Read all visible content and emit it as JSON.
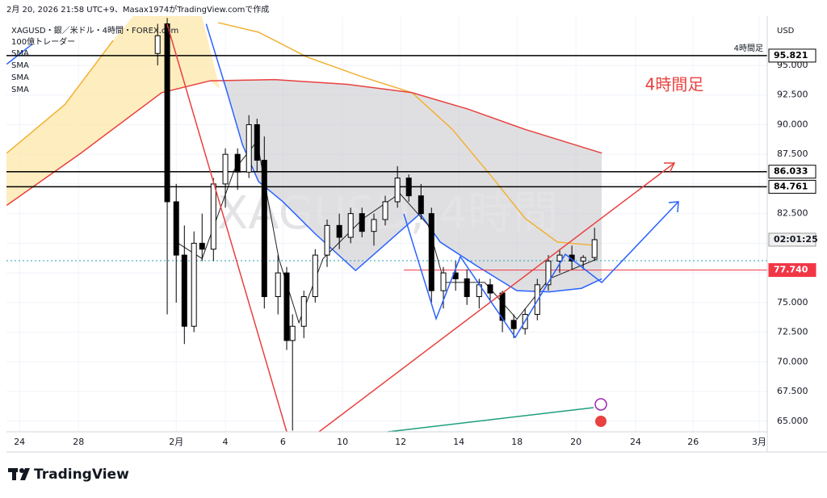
{
  "header": {
    "caption": "2月 20, 2026 21:58 UTC+9、Masax1974がTradingView.comで作成"
  },
  "footer": {
    "brand": "TradingView"
  },
  "chart_data": {
    "type": "candlestick",
    "title": "XAGUSD・銀／米ドル・4時間・FOREX.com",
    "subtitle": "100億トレーダー",
    "watermark": "XAGUSD, 4時間",
    "annotation": "4時間足",
    "currency": "USD",
    "countdown": "02:01:25",
    "grid": true,
    "colors": {
      "up": "#ffffff",
      "down": "#000000",
      "border": "#000000"
    },
    "x": [
      4.75,
      5.08,
      5.39,
      5.67,
      6.0,
      6.28,
      6.67,
      7.08,
      7.5,
      7.89,
      8.17,
      8.42,
      8.89,
      9.19,
      9.39,
      9.78,
      10.17,
      10.58,
      11.0,
      11.39,
      11.78,
      12.19,
      12.58,
      13.0,
      13.39,
      13.81,
      14.17,
      14.58,
      15.0,
      15.39,
      15.81,
      16.19,
      16.61,
      17.0,
      17.39,
      17.81,
      18.19,
      18.58,
      19.0,
      19.39,
      19.78
    ],
    "open": [
      96,
      98.5,
      83.5,
      79,
      73,
      80,
      79.5,
      85,
      87.5,
      86,
      90,
      87,
      75.5,
      77.5,
      71.8,
      73,
      75.5,
      79,
      81.5,
      80.5,
      82.5,
      81,
      82,
      83.5,
      85.5,
      84,
      82.5,
      76,
      77.5,
      77,
      75.5,
      76.5,
      75.8,
      73.5,
      72.8,
      74,
      76.5,
      78.5,
      79,
      78.5,
      78.8
    ],
    "high": [
      98.5,
      99,
      85,
      81.5,
      81,
      82.5,
      85.5,
      88,
      88,
      90.8,
      90.5,
      89,
      79,
      78,
      74,
      76,
      79.5,
      82,
      82.5,
      83,
      83,
      82.5,
      84,
      86.5,
      85.8,
      85,
      83,
      78,
      78.5,
      77.8,
      77,
      77,
      76,
      74,
      74.5,
      77,
      79,
      79.5,
      79.8,
      79,
      81.3
    ],
    "low": [
      95,
      74,
      75,
      71.5,
      72.5,
      78.5,
      78.5,
      83,
      84.5,
      85.5,
      86,
      74.5,
      74,
      71,
      64.2,
      72,
      75,
      78,
      79.5,
      80,
      80.5,
      79.8,
      81.5,
      83,
      83.5,
      82,
      75,
      74.5,
      76,
      74.8,
      74.5,
      75,
      72.5,
      72,
      72.3,
      73.5,
      76,
      77.5,
      77.8,
      77.8,
      78.5
    ],
    "close": [
      97.5,
      83.5,
      79,
      73,
      80,
      79.5,
      85,
      87.5,
      86,
      90,
      87,
      75.5,
      77.5,
      71.8,
      73,
      75.5,
      79,
      81.5,
      80.5,
      82.5,
      81,
      82,
      83.5,
      85.5,
      84,
      82.5,
      76,
      77.5,
      77,
      75.5,
      76.5,
      75.8,
      73.5,
      72.8,
      74,
      76.5,
      78.5,
      79,
      78.5,
      78.8,
      80.3
    ],
    "overlays": [
      {
        "name": "SMA",
        "color": "#f2b134",
        "x": [
          -0.44,
          1.56,
          3.22,
          5.0,
          6.83,
          8.22,
          9.89,
          11.83,
          13.5,
          14.89,
          16.28,
          17.39,
          18.5,
          19.89
        ],
        "values": [
          87.6,
          91.7,
          97.1,
          null,
          98.6,
          97.8,
          95.7,
          94,
          92.7,
          89.6,
          85.5,
          82.1,
          80.1,
          79.8
        ]
      },
      {
        "name": "SMA",
        "color": "#e8413f",
        "x": [
          -0.44,
          2.11,
          4.89,
          6.56,
          8.78,
          11.28,
          13.5,
          15.44,
          17.39,
          20.03
        ],
        "values": [
          83.2,
          87.6,
          92.7,
          93.7,
          93.8,
          93.4,
          92.7,
          91.3,
          89.6,
          87.6
        ]
      },
      {
        "name": "SMA",
        "color": "#2962ff",
        "x": [
          -0.44,
          0.44,
          3.5,
          6.42,
          7.11,
          7.67,
          8.22,
          9.06,
          10.17,
          11.56,
          12.67,
          13.78,
          14.47,
          15.72,
          17.11,
          18.22,
          19.33,
          20.03
        ],
        "values": [
          95.1,
          96.8,
          null,
          98.5,
          93,
          88.3,
          85.2,
          83.5,
          80.8,
          77.7,
          80.1,
          82.5,
          80.1,
          78.1,
          76,
          75.9,
          76.2,
          77
        ]
      },
      {
        "name": "SMA",
        "color": "#222222",
        "x": [
          5.39,
          6.28,
          7.39,
          8.17,
          8.92,
          9.61,
          10.44,
          11.83,
          13.08,
          14.06,
          14.61,
          16,
          17.11,
          18.22,
          19.89
        ],
        "values": [
          80.1,
          78.7,
          86.2,
          88.6,
          78.7,
          73.3,
          78.7,
          82.1,
          84.2,
          81.5,
          76.7,
          76.7,
          73.6,
          77,
          78.7
        ]
      }
    ],
    "hlines": [
      {
        "value": 95.821,
        "label": "95.821",
        "color": "#000000",
        "text": "4時間足"
      },
      {
        "value": 86.033,
        "label": "86.033",
        "color": "#000000"
      },
      {
        "value": 84.761,
        "label": "84.761",
        "color": "#000000"
      },
      {
        "value": 77.74,
        "label": "77.740",
        "color": "#f23645"
      }
    ],
    "xlim": [
      -0.45,
      25.72
    ],
    "xticks": [
      {
        "value": 0,
        "label": "24"
      },
      {
        "value": 2.03,
        "label": "28"
      },
      {
        "value": 5.39,
        "label": "2月"
      },
      {
        "value": 7.08,
        "label": "4"
      },
      {
        "value": 9.06,
        "label": "6"
      },
      {
        "value": 11.11,
        "label": "10"
      },
      {
        "value": 13.11,
        "label": "12"
      },
      {
        "value": 15.11,
        "label": "14"
      },
      {
        "value": 17.11,
        "label": "18"
      },
      {
        "value": 19.14,
        "label": "20"
      },
      {
        "value": 21.19,
        "label": "24"
      },
      {
        "value": 23.17,
        "label": "26"
      },
      {
        "value": 25.44,
        "label": "3月"
      }
    ],
    "ylim": [
      64.1,
      99.15
    ],
    "yticks": [
      {
        "value": 65,
        "label": "65.000"
      },
      {
        "value": 67.5,
        "label": "67.500"
      },
      {
        "value": 70,
        "label": "70.000"
      },
      {
        "value": 72.5,
        "label": "72.500"
      },
      {
        "value": 75,
        "label": "75.000"
      },
      {
        "value": 77.5,
        "label": "77.500"
      },
      {
        "value": 80,
        "label": "80.000"
      },
      {
        "value": 82.5,
        "label": "82.500"
      },
      {
        "value": 85,
        "label": "85.000"
      },
      {
        "value": 87.5,
        "label": "87.500"
      },
      {
        "value": 90,
        "label": "90.000"
      },
      {
        "value": 92.5,
        "label": "92.500"
      },
      {
        "value": 95,
        "label": "95.000"
      }
    ]
  }
}
